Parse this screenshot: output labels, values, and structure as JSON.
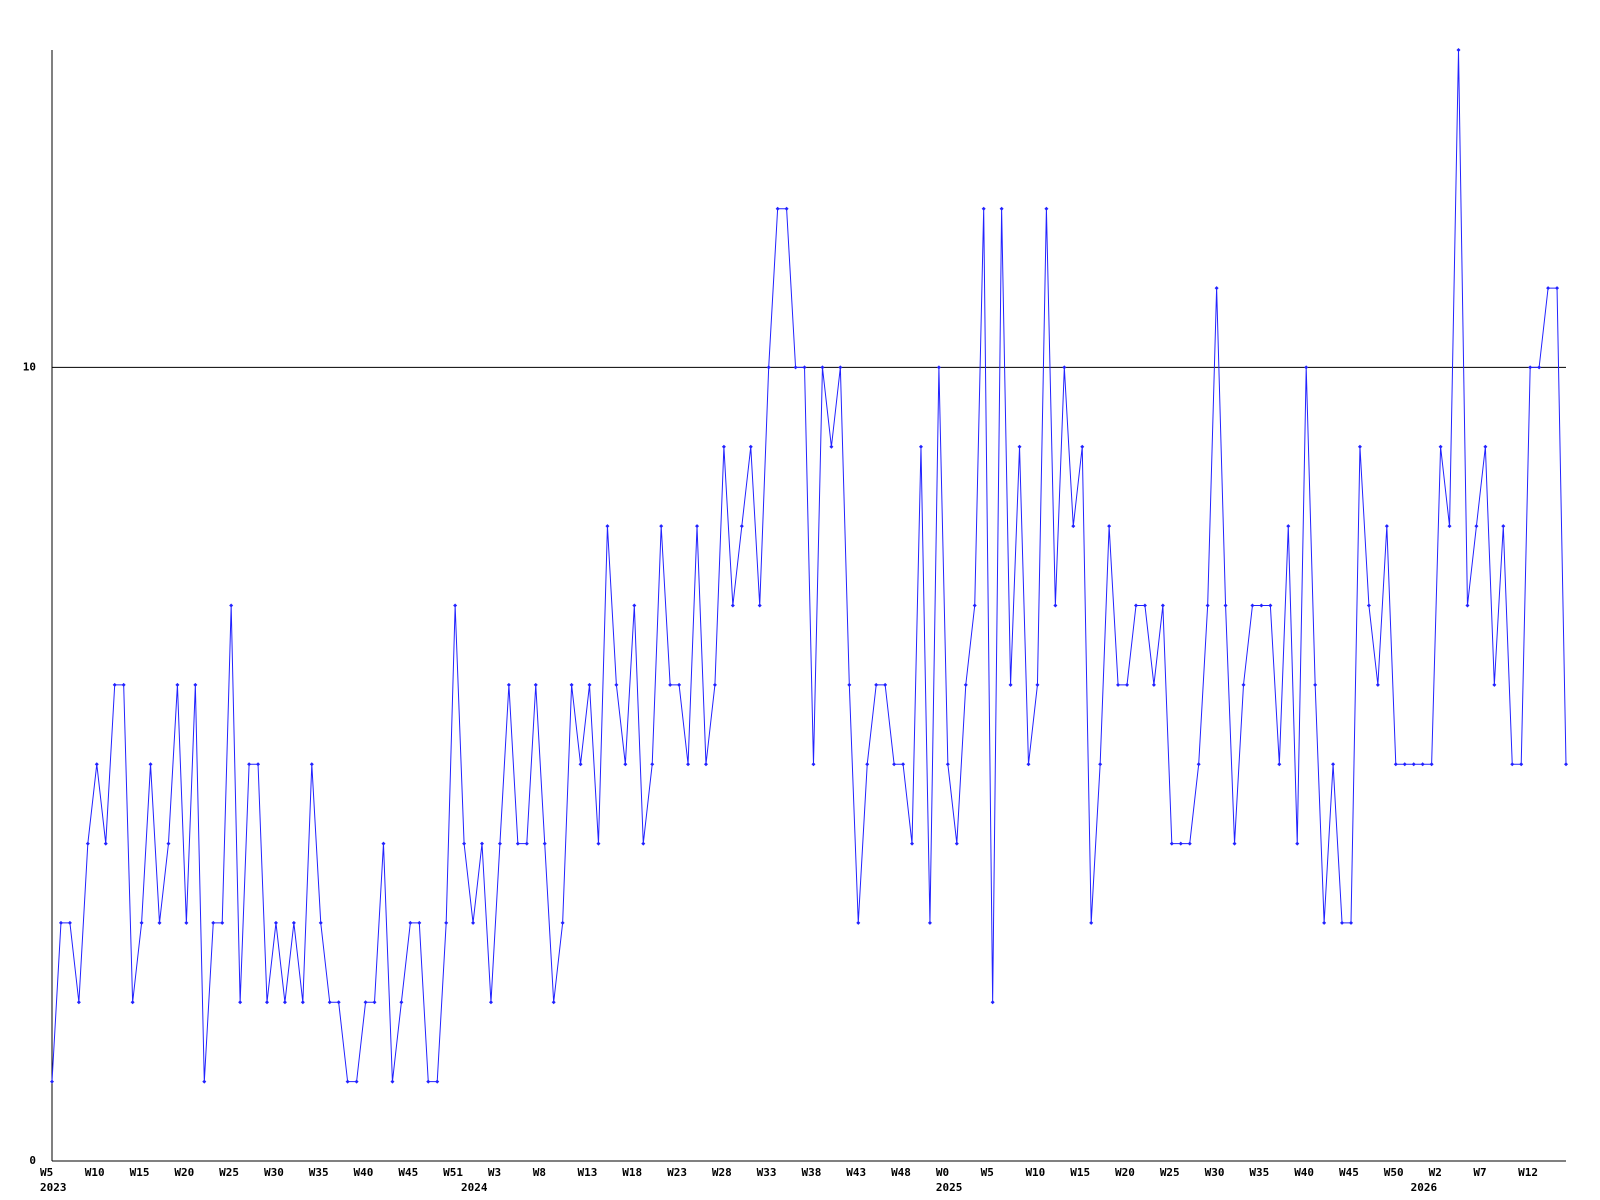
{
  "chart_data": {
    "type": "line",
    "categories": [
      "W5",
      null,
      null,
      null,
      null,
      "W10",
      null,
      null,
      null,
      null,
      "W15",
      null,
      null,
      null,
      null,
      "W20",
      null,
      null,
      null,
      null,
      "W25",
      null,
      null,
      null,
      null,
      "W30",
      null,
      null,
      null,
      null,
      "W35",
      null,
      null,
      null,
      null,
      "W40",
      null,
      null,
      null,
      null,
      "W45",
      null,
      null,
      null,
      null,
      "W51",
      null,
      null,
      null,
      null,
      "W3",
      null,
      null,
      null,
      null,
      "W8",
      null,
      null,
      null,
      null,
      "W13",
      null,
      null,
      null,
      null,
      "W18",
      null,
      null,
      null,
      null,
      "W23",
      null,
      null,
      null,
      null,
      "W28",
      null,
      null,
      null,
      null,
      "W33",
      null,
      null,
      null,
      null,
      "W38",
      null,
      null,
      null,
      null,
      "W43",
      null,
      null,
      null,
      null,
      "W48",
      null,
      null,
      null,
      null,
      "W0",
      null,
      null,
      null,
      null,
      "W5",
      null,
      null,
      null,
      null,
      "W10",
      null,
      null,
      null,
      null,
      "W15",
      null,
      null,
      null,
      null,
      "W20",
      null,
      null,
      null,
      null,
      "W25",
      null,
      null,
      null,
      null,
      "W30",
      null,
      null,
      null,
      null,
      "W35",
      null,
      null,
      null,
      null,
      "W40",
      null,
      null,
      null,
      null,
      "W45",
      null,
      null,
      null,
      null,
      "W50",
      null,
      null,
      null,
      null,
      "W2",
      null,
      null,
      null,
      null,
      "W7",
      null,
      null,
      null,
      null,
      "W12",
      null,
      null,
      null,
      null
    ],
    "category_years": [
      "2023",
      null,
      null,
      null,
      null,
      null,
      null,
      null,
      null,
      null,
      null,
      null,
      null,
      null,
      null,
      null,
      null,
      null,
      null,
      null,
      null,
      null,
      null,
      null,
      null,
      null,
      null,
      null,
      null,
      null,
      null,
      null,
      null,
      null,
      null,
      null,
      null,
      null,
      null,
      null,
      null,
      null,
      null,
      null,
      null,
      null,
      null,
      "2024",
      null,
      null,
      null,
      null,
      null,
      null,
      null,
      null,
      null,
      null,
      null,
      null,
      null,
      null,
      null,
      null,
      null,
      null,
      null,
      null,
      null,
      null,
      null,
      null,
      null,
      null,
      null,
      null,
      null,
      null,
      null,
      null,
      null,
      null,
      null,
      null,
      null,
      null,
      null,
      null,
      null,
      null,
      null,
      null,
      null,
      null,
      null,
      null,
      null,
      null,
      null,
      null,
      "2025",
      null,
      null,
      null,
      null,
      null,
      null,
      null,
      null,
      null,
      null,
      null,
      null,
      null,
      null,
      null,
      null,
      null,
      null,
      null,
      null,
      null,
      null,
      null,
      null,
      null,
      null,
      null,
      null,
      null,
      null,
      null,
      null,
      null,
      null,
      null,
      null,
      null,
      null,
      null,
      null,
      null,
      null,
      null,
      null,
      null,
      null,
      null,
      null,
      null,
      null,
      null,
      null,
      "2026",
      null,
      null,
      null,
      null,
      null,
      null,
      null,
      null,
      null,
      null,
      null,
      null,
      null,
      null,
      null,
      null
    ],
    "series": [
      {
        "color": "#2222ff",
        "values": [
          1,
          3,
          3,
          2,
          4,
          5,
          4,
          6,
          6,
          2,
          3,
          5,
          3,
          4,
          6,
          3,
          6,
          1,
          3,
          3,
          7,
          2,
          5,
          5,
          2,
          3,
          2,
          3,
          2,
          5,
          3,
          2,
          2,
          1,
          1,
          2,
          2,
          4,
          1,
          2,
          3,
          3,
          1,
          1,
          3,
          7,
          4,
          3,
          4,
          2,
          4,
          6,
          4,
          4,
          6,
          4,
          2,
          3,
          6,
          5,
          6,
          4,
          8,
          6,
          5,
          7,
          4,
          5,
          8,
          6,
          6,
          5,
          8,
          5,
          6,
          9,
          7,
          8,
          9,
          7,
          10,
          12,
          12,
          10,
          10,
          5,
          10,
          9,
          10,
          6,
          3,
          5,
          6,
          6,
          5,
          5,
          4,
          9,
          3,
          10,
          5,
          4,
          6,
          7,
          12,
          2,
          12,
          6,
          9,
          5,
          6,
          12,
          7,
          10,
          8,
          9,
          3,
          5,
          8,
          6,
          6,
          7,
          7,
          6,
          7,
          4,
          4,
          4,
          5,
          7,
          11,
          7,
          4,
          6,
          7,
          7,
          7,
          5,
          8,
          4,
          10,
          6,
          3,
          5,
          3,
          3,
          9,
          7,
          6,
          8,
          5,
          5,
          5,
          5,
          5,
          9,
          8,
          14,
          7,
          8,
          9,
          6,
          8,
          5,
          5,
          10,
          10,
          11,
          11,
          5
        ]
      }
    ],
    "ylim": [
      0,
      14
    ],
    "yticks": [
      0,
      10
    ],
    "grid": true,
    "markers": true
  }
}
